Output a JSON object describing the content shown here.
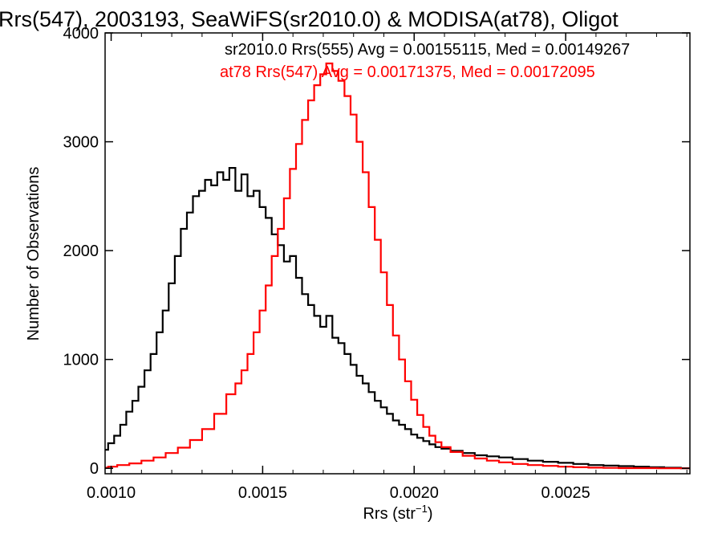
{
  "chart_data": {
    "type": "line",
    "title": "Rrs(547), 2003193, SeaWiFS(sr2010.0) & MODISA(at78), Oligot",
    "xlabel_main": "Rrs (str",
    "xlabel_sup": "−1",
    "xlabel_close": ")",
    "ylabel": "Number of Observations",
    "xlim": [
      0.00098,
      0.00291
    ],
    "ylim": [
      -50,
      4000
    ],
    "x_ticks": [
      {
        "value": 0.001,
        "label": "0.0010"
      },
      {
        "value": 0.0015,
        "label": "0.0015"
      },
      {
        "value": 0.002,
        "label": "0.0020"
      },
      {
        "value": 0.0025,
        "label": "0.0025"
      }
    ],
    "y_ticks": [
      {
        "value": 0,
        "label": "0"
      },
      {
        "value": 1000,
        "label": "1000"
      },
      {
        "value": 2000,
        "label": "2000"
      },
      {
        "value": 3000,
        "label": "3000"
      },
      {
        "value": 4000,
        "label": "4000"
      }
    ],
    "grid": false,
    "legend_position": "top",
    "series": [
      {
        "name": "sr2010.0 Rrs(555) Avg = 0.00155115, Med = 0.00149267",
        "color": "#000000",
        "points": [
          [
            0.00098,
            170
          ],
          [
            0.001,
            230
          ],
          [
            0.00102,
            300
          ],
          [
            0.00104,
            400
          ],
          [
            0.00106,
            520
          ],
          [
            0.00108,
            620
          ],
          [
            0.0011,
            750
          ],
          [
            0.00112,
            900
          ],
          [
            0.00114,
            1050
          ],
          [
            0.00116,
            1250
          ],
          [
            0.00118,
            1450
          ],
          [
            0.0012,
            1700
          ],
          [
            0.00122,
            1950
          ],
          [
            0.00124,
            2200
          ],
          [
            0.00126,
            2350
          ],
          [
            0.00128,
            2500
          ],
          [
            0.0013,
            2550
          ],
          [
            0.00132,
            2650
          ],
          [
            0.00134,
            2600
          ],
          [
            0.00136,
            2720
          ],
          [
            0.00138,
            2650
          ],
          [
            0.0014,
            2760
          ],
          [
            0.00142,
            2550
          ],
          [
            0.00144,
            2700
          ],
          [
            0.00146,
            2500
          ],
          [
            0.00148,
            2550
          ],
          [
            0.0015,
            2400
          ],
          [
            0.00152,
            2300
          ],
          [
            0.00154,
            2150
          ],
          [
            0.00156,
            2050
          ],
          [
            0.00158,
            1900
          ],
          [
            0.0016,
            1950
          ],
          [
            0.00162,
            1750
          ],
          [
            0.00164,
            1600
          ],
          [
            0.00166,
            1500
          ],
          [
            0.00168,
            1400
          ],
          [
            0.0017,
            1300
          ],
          [
            0.00172,
            1400
          ],
          [
            0.00174,
            1200
          ],
          [
            0.00176,
            1150
          ],
          [
            0.00178,
            1050
          ],
          [
            0.0018,
            950
          ],
          [
            0.00182,
            850
          ],
          [
            0.00184,
            780
          ],
          [
            0.00186,
            700
          ],
          [
            0.00188,
            620
          ],
          [
            0.0019,
            560
          ],
          [
            0.00192,
            500
          ],
          [
            0.00194,
            440
          ],
          [
            0.00196,
            400
          ],
          [
            0.00198,
            360
          ],
          [
            0.002,
            310
          ],
          [
            0.00202,
            280
          ],
          [
            0.00204,
            250
          ],
          [
            0.00206,
            220
          ],
          [
            0.00208,
            195
          ],
          [
            0.0021,
            180
          ],
          [
            0.00214,
            160
          ],
          [
            0.00218,
            140
          ],
          [
            0.00222,
            120
          ],
          [
            0.00226,
            110
          ],
          [
            0.0023,
            100
          ],
          [
            0.00235,
            85
          ],
          [
            0.0024,
            70
          ],
          [
            0.00245,
            60
          ],
          [
            0.0025,
            50
          ],
          [
            0.00255,
            40
          ],
          [
            0.0026,
            30
          ],
          [
            0.00265,
            25
          ],
          [
            0.0027,
            20
          ],
          [
            0.00275,
            15
          ],
          [
            0.0028,
            10
          ],
          [
            0.00285,
            5
          ],
          [
            0.00291,
            0
          ]
        ]
      },
      {
        "name": "at78 Rrs(547) Avg = 0.00171375, Med = 0.00172095",
        "color": "#ff0000",
        "points": [
          [
            0.00098,
            5
          ],
          [
            0.001,
            15
          ],
          [
            0.00104,
            30
          ],
          [
            0.00108,
            45
          ],
          [
            0.00112,
            70
          ],
          [
            0.00116,
            100
          ],
          [
            0.0012,
            140
          ],
          [
            0.00124,
            190
          ],
          [
            0.00128,
            260
          ],
          [
            0.00132,
            360
          ],
          [
            0.00136,
            500
          ],
          [
            0.0014,
            680
          ],
          [
            0.00142,
            780
          ],
          [
            0.00144,
            900
          ],
          [
            0.00146,
            1050
          ],
          [
            0.00148,
            1250
          ],
          [
            0.0015,
            1450
          ],
          [
            0.00152,
            1680
          ],
          [
            0.00154,
            1950
          ],
          [
            0.00156,
            2200
          ],
          [
            0.00158,
            2480
          ],
          [
            0.0016,
            2750
          ],
          [
            0.00162,
            2980
          ],
          [
            0.00164,
            3200
          ],
          [
            0.00166,
            3380
          ],
          [
            0.00168,
            3520
          ],
          [
            0.0017,
            3620
          ],
          [
            0.00172,
            3720
          ],
          [
            0.00174,
            3650
          ],
          [
            0.00176,
            3560
          ],
          [
            0.00178,
            3420
          ],
          [
            0.0018,
            3250
          ],
          [
            0.00182,
            3000
          ],
          [
            0.00184,
            2720
          ],
          [
            0.00186,
            2400
          ],
          [
            0.00188,
            2100
          ],
          [
            0.0019,
            1800
          ],
          [
            0.00192,
            1500
          ],
          [
            0.00194,
            1220
          ],
          [
            0.00196,
            1000
          ],
          [
            0.00198,
            800
          ],
          [
            0.002,
            630
          ],
          [
            0.00202,
            490
          ],
          [
            0.00204,
            380
          ],
          [
            0.00206,
            300
          ],
          [
            0.00208,
            240
          ],
          [
            0.0021,
            195
          ],
          [
            0.00214,
            150
          ],
          [
            0.00218,
            115
          ],
          [
            0.00222,
            90
          ],
          [
            0.00226,
            70
          ],
          [
            0.0023,
            55
          ],
          [
            0.00235,
            40
          ],
          [
            0.0024,
            30
          ],
          [
            0.00245,
            22
          ],
          [
            0.0025,
            15
          ],
          [
            0.00255,
            10
          ],
          [
            0.0026,
            6
          ],
          [
            0.00265,
            4
          ],
          [
            0.0027,
            2
          ],
          [
            0.00291,
            0
          ]
        ]
      }
    ]
  }
}
